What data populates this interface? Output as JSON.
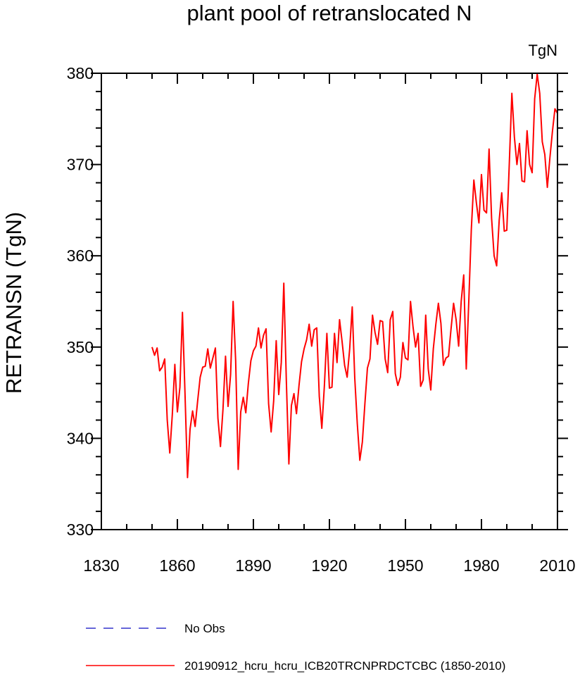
{
  "chart_data": {
    "type": "line",
    "title": "plant pool of retranslocated N",
    "units": "TgN",
    "xlabel": "",
    "ylabel": "RETRANSN  (TgN)",
    "xlim": [
      1830,
      2010
    ],
    "ylim": [
      330,
      380
    ],
    "x_ticks": [
      1830,
      1860,
      1890,
      1920,
      1950,
      1980,
      2010
    ],
    "y_ticks": [
      330,
      340,
      350,
      360,
      370,
      380
    ],
    "grid": false,
    "series": [
      {
        "name": "20190912_hcru_hcru_ICB20TRCNPRDCTCBC (1850-2010)",
        "color": "#ff0000",
        "style": "solid",
        "x_start": 1850,
        "values": [
          350.0,
          349.1,
          349.9,
          347.4,
          347.8,
          348.7,
          342.0,
          338.4,
          342.6,
          348.1,
          342.9,
          345.6,
          353.8,
          345.0,
          335.7,
          341.0,
          343.0,
          341.3,
          344.1,
          346.7,
          347.8,
          347.9,
          349.8,
          347.7,
          348.8,
          349.9,
          342.2,
          339.1,
          343.2,
          349.0,
          343.5,
          347.0,
          355.0,
          348.5,
          336.6,
          342.9,
          344.5,
          342.8,
          346.0,
          348.5,
          349.6,
          350.1,
          352.1,
          349.9,
          351.3,
          352.0,
          343.8,
          340.7,
          344.1,
          350.7,
          344.8,
          348.3,
          357.0,
          346.3,
          337.2,
          343.6,
          344.9,
          342.7,
          345.8,
          348.4,
          349.8,
          350.8,
          352.5,
          350.1,
          351.9,
          352.1,
          344.6,
          341.1,
          345.7,
          351.5,
          345.5,
          345.6,
          351.5,
          348.3,
          353.0,
          350.6,
          348.0,
          346.7,
          349.8,
          354.4,
          346.6,
          341.6,
          337.6,
          339.6,
          343.8,
          347.7,
          348.7,
          353.5,
          351.6,
          350.3,
          352.9,
          352.8,
          348.7,
          347.2,
          353.0,
          353.9,
          347.1,
          345.8,
          346.7,
          350.5,
          348.8,
          348.6,
          355.0,
          352.2,
          350.0,
          351.5,
          345.7,
          346.4,
          353.5,
          347.6,
          345.3,
          349.8,
          352.5,
          354.8,
          352.6,
          348.0,
          348.8,
          349.0,
          352.0,
          354.8,
          353.0,
          350.1,
          355.0,
          357.9,
          347.6,
          355.0,
          362.9,
          368.3,
          365.8,
          363.6,
          368.9,
          365.0,
          364.7,
          371.7,
          364.1,
          360.0,
          358.9,
          363.9,
          366.9,
          362.7,
          362.8,
          370.2,
          377.8,
          373.0,
          370.0,
          372.3,
          368.2,
          368.1,
          373.7,
          370.0,
          369.1,
          377.2,
          379.9,
          377.8,
          372.5,
          371.1,
          367.5,
          370.7,
          373.6,
          376.1,
          375.6
        ]
      }
    ],
    "legend": {
      "position": "bottom",
      "entries": [
        {
          "label": "No Obs",
          "color": "#3333cc",
          "style": "dashed"
        },
        {
          "label": "20190912_hcru_hcru_ICB20TRCNPRDCTCBC (1850-2010)",
          "color": "#ff0000",
          "style": "solid"
        }
      ]
    }
  }
}
